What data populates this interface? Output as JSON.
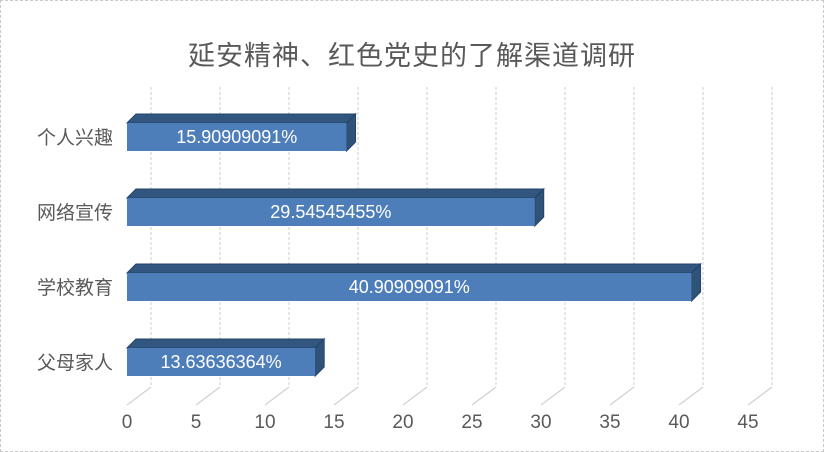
{
  "frame": {
    "background": "#ffffff",
    "border_color": "#c9c9c9"
  },
  "chart_data": {
    "type": "bar",
    "orientation": "horizontal",
    "style": "3d",
    "title": "延安精神、红色党史的了解渠道调研",
    "categories": [
      "个人兴趣",
      "网络宣传",
      "学校教育",
      "父母家人"
    ],
    "values": [
      15.90909091,
      29.54545455,
      40.90909091,
      13.63636364
    ],
    "data_labels": [
      "15.90909091%",
      "29.54545455%",
      "40.90909091%",
      "13.63636364%"
    ],
    "xlabel": "",
    "ylabel": "",
    "xlim": [
      0,
      45
    ],
    "x_ticks": [
      0,
      5,
      10,
      15,
      20,
      25,
      30,
      35,
      40,
      45
    ],
    "grid": true,
    "legend": false,
    "colors": {
      "bar_front": "#4e7eba",
      "bar_top": "#31567f",
      "bar_side": "#2e5377",
      "bar_edge": "#24436b",
      "gridline": "#d9d9d9",
      "floor_line": "#d2d2d2",
      "axis_text": "#595959",
      "title_text": "#595959",
      "data_label_text": "#ffffff"
    }
  }
}
